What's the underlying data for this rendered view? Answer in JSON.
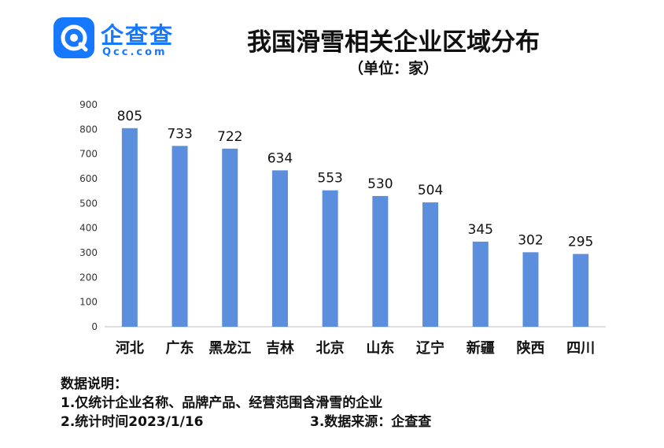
{
  "logo": {
    "name_cn": "企查查",
    "name_en": "Qcc.com",
    "brand_color": "#1678ff"
  },
  "header": {
    "title": "我国滑雪相关企业区域分布",
    "subtitle": "（单位：家）"
  },
  "chart_data": {
    "type": "bar",
    "title": "我国滑雪相关企业区域分布",
    "subtitle": "（单位：家）",
    "categories": [
      "河北",
      "广东",
      "黑龙江",
      "吉林",
      "北京",
      "山东",
      "辽宁",
      "新疆",
      "陕西",
      "四川"
    ],
    "values": [
      805,
      733,
      722,
      634,
      553,
      530,
      504,
      345,
      302,
      295
    ],
    "ylim": [
      0,
      900
    ],
    "yticks": [
      0,
      100,
      200,
      300,
      400,
      500,
      600,
      700,
      800,
      900
    ],
    "xlabel": "",
    "ylabel": "",
    "grid": false,
    "legend": "none",
    "bar_color": "#5b8fde",
    "axis_color": "#bfbfbf"
  },
  "notes": {
    "heading": "数据说明：",
    "line1": "1.仅统计企业名称、品牌产品、经营范围含滑雪的企业",
    "line2": "2.统计时间2023/1/16",
    "line3": "3.数据来源：企查查"
  }
}
